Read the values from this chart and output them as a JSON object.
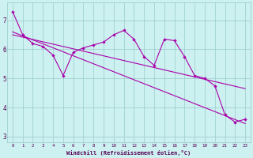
{
  "xlabel": "Windchill (Refroidissement éolien,°C)",
  "bg_color": "#cdf0f0",
  "line_color": "#aa00aa",
  "grid_color": "#99cccc",
  "ylim": [
    2.8,
    7.6
  ],
  "xlim": [
    -0.5,
    23.5
  ],
  "yticks": [
    3,
    4,
    5,
    6,
    7
  ],
  "xticks": [
    0,
    1,
    2,
    3,
    4,
    5,
    6,
    7,
    8,
    9,
    10,
    11,
    12,
    13,
    14,
    15,
    16,
    17,
    18,
    19,
    20,
    21,
    22,
    23
  ],
  "series1": [
    7.3,
    6.5,
    6.2,
    6.1,
    5.8,
    5.1,
    5.9,
    6.05,
    6.15,
    6.25,
    6.5,
    6.65,
    6.35,
    5.75,
    5.45,
    6.35,
    6.3,
    5.75,
    5.1,
    5.0,
    4.75,
    3.75,
    3.5,
    3.6
  ],
  "trend1_x": [
    0,
    23
  ],
  "trend1_y": [
    6.5,
    4.65
  ],
  "trend2_x": [
    0,
    23
  ],
  "trend2_y": [
    6.6,
    3.45
  ]
}
